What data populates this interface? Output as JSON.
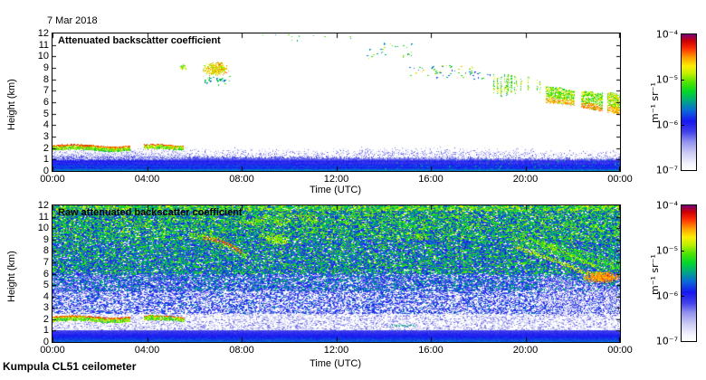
{
  "header": {
    "date_label": "7 Mar 2018"
  },
  "footer": {
    "instrument_label": "Kumpula CL51 ceilometer"
  },
  "colorbar": {
    "unit": "m⁻¹ sr⁻¹",
    "ticks": [
      "10⁻⁴",
      "10⁻⁵",
      "10⁻⁶",
      "10⁻⁷"
    ],
    "range_log10": [
      -7,
      -4
    ]
  },
  "colormap_stops": [
    [
      0.0,
      "#ffffff"
    ],
    [
      0.05,
      "#f2f2fc"
    ],
    [
      0.13,
      "#c9c9f4"
    ],
    [
      0.21,
      "#9191ee"
    ],
    [
      0.28,
      "#4343ea"
    ],
    [
      0.36,
      "#1616f0"
    ],
    [
      0.44,
      "#0a6ad8"
    ],
    [
      0.51,
      "#00a882"
    ],
    [
      0.575,
      "#00d62a"
    ],
    [
      0.65,
      "#55e400"
    ],
    [
      0.71,
      "#bff000"
    ],
    [
      0.765,
      "#fcee00"
    ],
    [
      0.83,
      "#ff9d00"
    ],
    [
      0.895,
      "#ff2f00"
    ],
    [
      0.95,
      "#cd0000"
    ],
    [
      1.0,
      "#7a0078"
    ]
  ],
  "chart_data": [
    {
      "type": "heatmap",
      "title": "Attenuated backscatter coefficient",
      "xlabel": "Time (UTC)",
      "ylabel": "Height (km)",
      "x_range_hours": [
        0,
        24
      ],
      "y_range_km": [
        0,
        12
      ],
      "value_range": [
        "1e-7",
        "1e-4"
      ],
      "xtick_hours": [
        0,
        4,
        8,
        12,
        16,
        20,
        24
      ],
      "xtick_labels": [
        "00:00",
        "04:00",
        "08:00",
        "12:00",
        "16:00",
        "20:00",
        "00:00"
      ],
      "ytick_km": [
        12,
        11,
        10,
        9,
        8,
        7,
        6,
        5,
        4,
        3,
        2,
        1,
        0
      ],
      "background": "clear",
      "features": [
        {
          "kind": "ground",
          "t": [
            0,
            24
          ],
          "top_km": [
            1.3,
            1.05
          ],
          "int": [
            0.26,
            0.45
          ]
        },
        {
          "kind": "fuzz",
          "t": [
            0,
            24
          ],
          "above": [
            1.25,
            1.0
          ],
          "depth": 0.9,
          "density": 0.5,
          "int": [
            0.05,
            0.28
          ]
        },
        {
          "kind": "fuzz",
          "t": [
            0,
            5.7
          ],
          "above": [
            1.05,
            1.1
          ],
          "depth": 1.0,
          "density": 0.75,
          "int": [
            0.04,
            0.22
          ]
        },
        {
          "kind": "fuzz",
          "t": [
            13,
            20.5
          ],
          "above": [
            1.55,
            1.45
          ],
          "depth": 0.65,
          "density": 0.3,
          "int": [
            0.05,
            0.26
          ]
        },
        {
          "kind": "specks",
          "t": [
            14,
            24
          ],
          "km": [
            0.2,
            1.1
          ],
          "count": 80,
          "int": [
            0.44,
            0.54
          ]
        },
        {
          "kind": "layer",
          "t": [
            0,
            3.3
          ],
          "km": 2.05,
          "thick": 0.4,
          "density": 0.92,
          "int": [
            0.52,
            0.78
          ],
          "cap_int": [
            0.84,
            0.93
          ]
        },
        {
          "kind": "layer",
          "t": [
            3.85,
            5.55
          ],
          "km": 2.1,
          "thick": 0.38,
          "density": 0.92,
          "int": [
            0.52,
            0.78
          ],
          "cap_int": [
            0.84,
            0.93
          ]
        },
        {
          "kind": "blob",
          "t": [
            5.35,
            5.65
          ],
          "km": [
            8.8,
            9.4
          ],
          "density": 0.7,
          "int": [
            0.6,
            0.82
          ]
        },
        {
          "kind": "blob",
          "t": [
            6.3,
            7.45
          ],
          "km": [
            8.3,
            9.6
          ],
          "density": 0.75,
          "int": [
            0.66,
            0.87
          ]
        },
        {
          "kind": "specks",
          "t": [
            6.4,
            7.5
          ],
          "km": [
            7.6,
            8.3
          ],
          "count": 30,
          "int": [
            0.45,
            0.68
          ]
        },
        {
          "kind": "specks",
          "t": [
            8.5,
            13
          ],
          "km": [
            11.4,
            12
          ],
          "count": 12,
          "int": [
            0.45,
            0.7
          ]
        },
        {
          "kind": "specks",
          "t": [
            13.2,
            15.2
          ],
          "km": [
            9.9,
            11.2
          ],
          "count": 28,
          "int": [
            0.45,
            0.75
          ]
        },
        {
          "kind": "specks",
          "t": [
            15.0,
            17.8
          ],
          "km": [
            8.2,
            9.3
          ],
          "count": 50,
          "int": [
            0.42,
            0.85
          ]
        },
        {
          "kind": "specks",
          "t": [
            17.6,
            18.5
          ],
          "km": [
            8.0,
            8.7
          ],
          "count": 14,
          "int": [
            0.3,
            0.62
          ]
        },
        {
          "kind": "vstreaks",
          "t": [
            18.4,
            20.7
          ],
          "km_top": [
            8.5,
            8.0
          ],
          "km_bot": [
            6.6,
            7.0
          ],
          "count": 16,
          "int": [
            0.5,
            0.78
          ]
        },
        {
          "kind": "cloud",
          "t": [
            20.85,
            22.2
          ],
          "top": [
            7.5,
            7.0
          ],
          "bot": [
            6.0,
            5.8
          ],
          "density": 0.8,
          "int": [
            0.55,
            0.8
          ],
          "base_int": [
            0.78,
            0.87
          ],
          "gap": 0.1
        },
        {
          "kind": "cloud",
          "t": [
            22.35,
            23.25
          ],
          "top": [
            7.0,
            6.8
          ],
          "bot": [
            5.6,
            5.3
          ],
          "density": 0.82,
          "int": [
            0.55,
            0.8
          ],
          "base_int": [
            0.8,
            0.88
          ],
          "gap": 0.08
        },
        {
          "kind": "cloud",
          "t": [
            23.45,
            24
          ],
          "top": [
            6.9,
            6.7
          ],
          "bot": [
            5.2,
            5.0
          ],
          "density": 0.82,
          "int": [
            0.58,
            0.82
          ],
          "base_int": [
            0.78,
            0.86
          ],
          "gap": 0.06
        }
      ]
    },
    {
      "type": "heatmap",
      "title": "Raw attenuated backscatter coefficient",
      "xlabel": "Time (UTC)",
      "ylabel": "Height (km)",
      "x_range_hours": [
        0,
        24
      ],
      "y_range_km": [
        0,
        12
      ],
      "value_range": [
        "1e-7",
        "1e-4"
      ],
      "xtick_hours": [
        0,
        4,
        8,
        12,
        16,
        20,
        24
      ],
      "xtick_labels": [
        "00:00",
        "04:00",
        "08:00",
        "12:00",
        "16:00",
        "20:00",
        "00:00"
      ],
      "ytick_km": [
        12,
        11,
        10,
        9,
        8,
        7,
        6,
        5,
        4,
        3,
        2,
        1,
        0
      ],
      "background": "noise",
      "noise_bands": [
        {
          "km": [
            0,
            1.05
          ],
          "int": [
            0.28,
            0.44
          ],
          "grad": true
        },
        {
          "km": [
            1.05,
            2.5
          ],
          "int": [
            0.04,
            0.26
          ],
          "white": 0.55
        },
        {
          "km": [
            2.5,
            4.5
          ],
          "int": [
            0.08,
            0.48
          ],
          "white": 0.3
        },
        {
          "km": [
            4.5,
            6
          ],
          "int": [
            0.16,
            0.56
          ],
          "white": 0.15
        },
        {
          "km": [
            6,
            9
          ],
          "int": [
            0.26,
            0.66
          ],
          "white": 0.07,
          "warm": 0.015
        },
        {
          "km": [
            9,
            11.6
          ],
          "int": [
            0.32,
            0.7
          ],
          "white": 0.05,
          "warm": 0.035
        },
        {
          "km": [
            11.6,
            12
          ],
          "int": [
            0.4,
            0.76
          ],
          "white": 0.03,
          "warm": 0.06
        }
      ],
      "features": [
        {
          "kind": "layer",
          "t": [
            0,
            3.3
          ],
          "km": 2.05,
          "thick": 0.4,
          "density": 0.9,
          "int": [
            0.5,
            0.76
          ],
          "cap_int": [
            0.84,
            0.92
          ]
        },
        {
          "kind": "layer",
          "t": [
            3.85,
            5.6
          ],
          "km": 2.1,
          "thick": 0.38,
          "density": 0.9,
          "int": [
            0.5,
            0.76
          ],
          "cap_int": [
            0.84,
            0.92
          ]
        },
        {
          "kind": "arc",
          "pts": [
            [
              5.8,
              9.6
            ],
            [
              6.6,
              9.15
            ],
            [
              7.3,
              8.7
            ],
            [
              8.3,
              7.5
            ]
          ],
          "w_km": 0.7,
          "density": 0.45,
          "int": [
            0.6,
            0.74
          ]
        },
        {
          "kind": "arc",
          "pts": [
            [
              6.4,
              9.2
            ],
            [
              6.9,
              9.0
            ],
            [
              7.4,
              8.6
            ],
            [
              8.0,
              7.9
            ]
          ],
          "w_km": 0.28,
          "density": 0.9,
          "int": [
            0.8,
            0.92
          ]
        },
        {
          "kind": "patches",
          "t": [
            8,
            17
          ],
          "km": [
            8.6,
            11.5
          ],
          "count": 10,
          "r_h": 0.5,
          "r_km": 0.35,
          "density": 0.5,
          "int": [
            0.6,
            0.76
          ]
        },
        {
          "kind": "cloud",
          "t": [
            19.5,
            24
          ],
          "top": [
            9.6,
            7.2
          ],
          "bot": [
            8.7,
            6.1
          ],
          "density": 0.5,
          "int": [
            0.52,
            0.72
          ],
          "gap": 0
        },
        {
          "kind": "wash",
          "t": [
            20.5,
            24
          ],
          "top": [
            5.8,
            4.8
          ],
          "bot": 2.3,
          "density": 0.5,
          "int": [
            0.05,
            0.34
          ],
          "white": 0.3
        },
        {
          "kind": "arc",
          "pts": [
            [
              19.6,
              8.3
            ],
            [
              20.6,
              7.7
            ],
            [
              21.6,
              6.9
            ],
            [
              22.4,
              6.2
            ],
            [
              23.2,
              5.9
            ]
          ],
          "w_km": 0.35,
          "density": 0.7,
          "int": [
            0.66,
            0.8
          ]
        },
        {
          "kind": "arc",
          "pts": [
            [
              20.4,
              8.9
            ],
            [
              21.4,
              8.1
            ],
            [
              22.3,
              7.3
            ],
            [
              23.0,
              6.6
            ]
          ],
          "w_km": 0.3,
          "density": 0.55,
          "int": [
            0.62,
            0.76
          ]
        },
        {
          "kind": "blob",
          "t": [
            22.4,
            24
          ],
          "km": [
            5.2,
            6.3
          ],
          "density": 0.8,
          "int": [
            0.78,
            0.88
          ]
        },
        {
          "kind": "blob",
          "t": [
            14.2,
            15.4
          ],
          "km": [
            1.35,
            1.6
          ],
          "density": 0.55,
          "int": [
            0.46,
            0.58
          ]
        }
      ]
    }
  ]
}
